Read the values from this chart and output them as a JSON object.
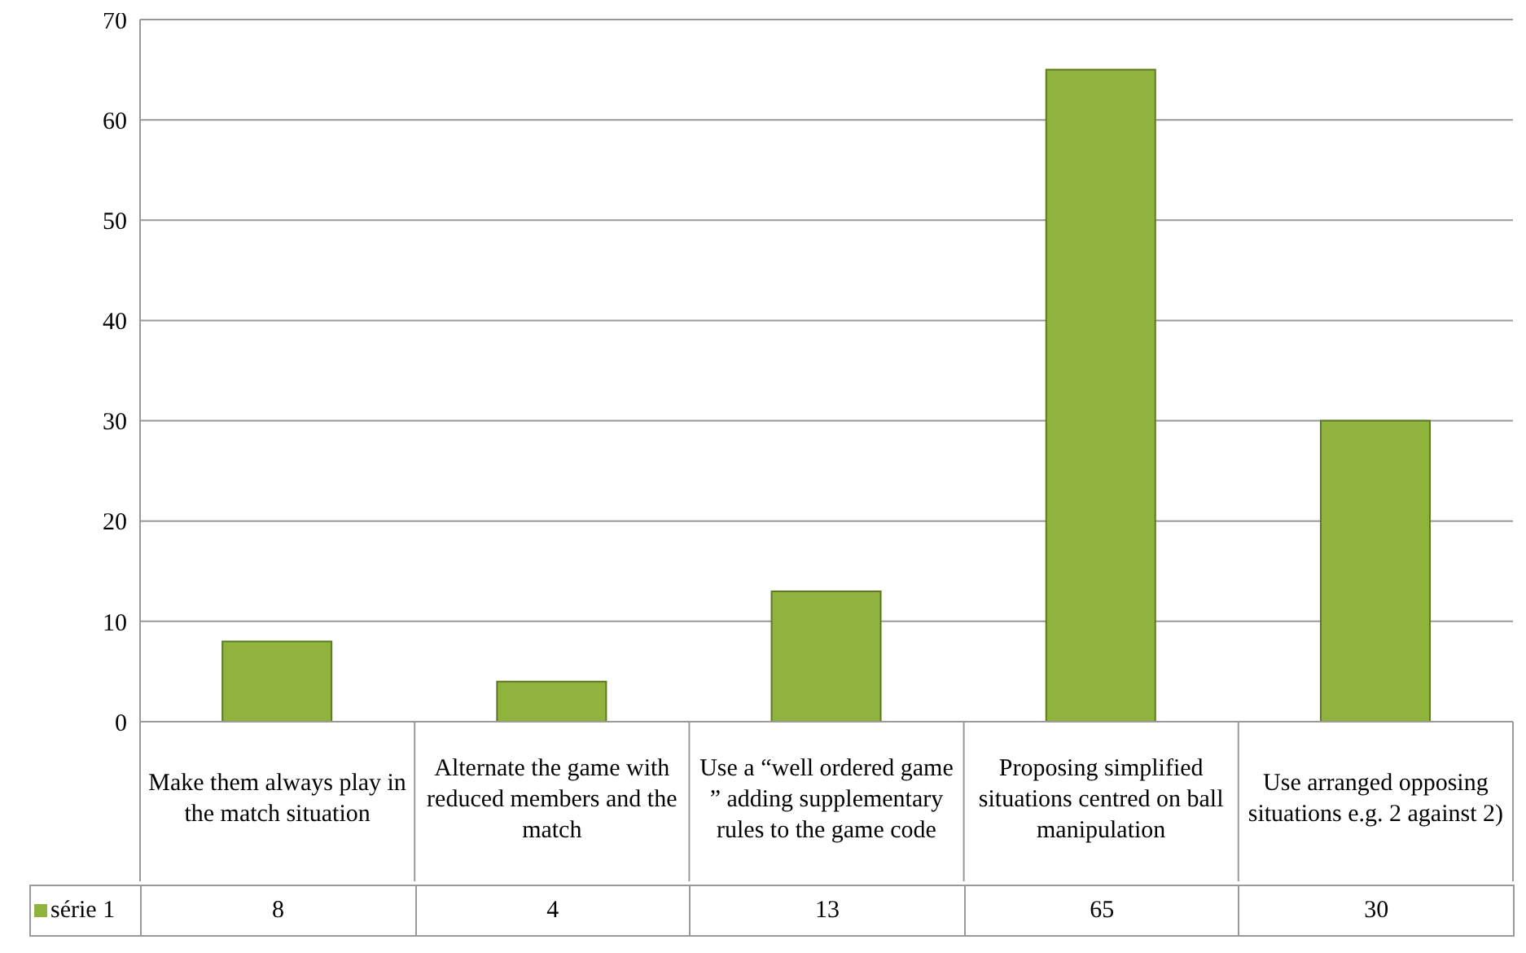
{
  "chart_data": {
    "type": "bar",
    "categories": [
      "Make them always play in the match situation",
      "Alternate the game with reduced members and the match",
      "Use a “well ordered game ” adding supplementary rules to the game code",
      "Proposing simplified situations centred on ball manipulation",
      "Use arranged opposing situations e.g. 2 against 2)"
    ],
    "series": [
      {
        "name": "série 1",
        "color": "#8fb33c",
        "values": [
          8,
          4,
          13,
          65,
          30
        ]
      }
    ],
    "ylim": [
      0,
      70
    ],
    "yticks": [
      0,
      10,
      20,
      30,
      40,
      50,
      60,
      70
    ],
    "grid": "y",
    "legend": "bottom",
    "data_labels": true
  }
}
